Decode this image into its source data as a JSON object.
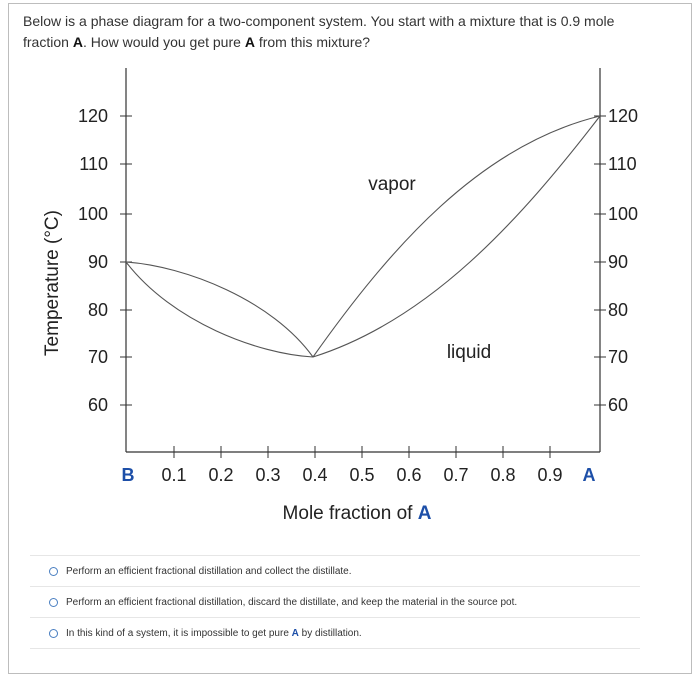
{
  "question": {
    "part1": "Below is a phase diagram for a two-component system. You start with a mixture that is 0.9 mole fraction ",
    "comp_a": "A",
    "part2": ". How would you get pure ",
    "comp_a2": "A",
    "part3": " from this mixture?"
  },
  "diagram": {
    "y_ticks": [
      "120",
      "110",
      "100",
      "90",
      "80",
      "70",
      "60"
    ],
    "x_ticks": [
      "0.1",
      "0.2",
      "0.3",
      "0.4",
      "0.5",
      "0.6",
      "0.7",
      "0.8",
      "0.9"
    ],
    "x_left_label": "B",
    "x_right_label": "A",
    "x_title_prefix": "Mole fraction of ",
    "x_title_component": "A",
    "y_title": "Temperature (°C)",
    "region_vapor": "vapor",
    "region_liquid": "liquid",
    "colors": {
      "component_label": "#1d4fa8",
      "curve": "#555555"
    }
  },
  "options": [
    {
      "text": "Perform an efficient fractional distillation and collect the distillate."
    },
    {
      "text": "Perform an efficient fractional distillation, discard the distillate, and keep the material in the source pot."
    },
    {
      "prefix": "In this kind of a system, it is impossible to get pure ",
      "bold": "A",
      "suffix": " by distillation."
    }
  ]
}
